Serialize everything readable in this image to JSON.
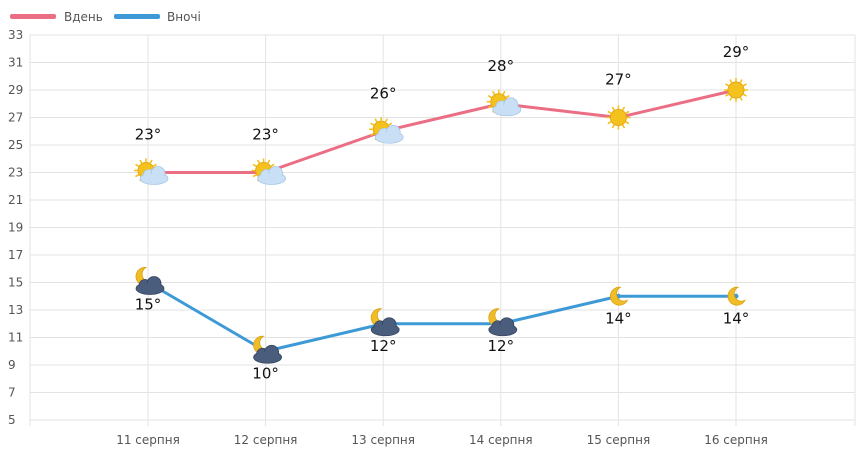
{
  "legend": {
    "day_label": "Вдень",
    "night_label": "Вночі"
  },
  "colors": {
    "day": "#ec6e85",
    "night": "#3d9ad6",
    "grid": "#e3e3e3",
    "axis_text": "#555555",
    "sun": "#f3c21d",
    "moon": "#f0bd26",
    "cloud_light": "#c9dff5",
    "cloud_dark": "#4a5d7c"
  },
  "chart_data": {
    "type": "line",
    "title": "",
    "xlabel": "",
    "ylabel": "",
    "ylim": [
      5,
      33
    ],
    "y_ticks": [
      5,
      7,
      9,
      11,
      13,
      15,
      17,
      19,
      21,
      23,
      25,
      27,
      29,
      31,
      33
    ],
    "grid": true,
    "legend_position": "top-left",
    "categories": [
      "11 серпня",
      "12 серпня",
      "13 серпня",
      "14 серпня",
      "15 серпня",
      "16 серпня"
    ],
    "series": [
      {
        "name": "Вдень",
        "values": [
          23,
          23,
          26,
          28,
          27,
          29
        ],
        "labels": [
          "23°",
          "23°",
          "26°",
          "28°",
          "27°",
          "29°"
        ],
        "icons": [
          "sun-cloud-icon",
          "sun-cloud-icon",
          "sun-cloud-icon",
          "sun-cloud-icon",
          "sun-icon",
          "sun-icon"
        ]
      },
      {
        "name": "Вночі",
        "values": [
          15,
          10,
          12,
          12,
          14,
          14
        ],
        "labels": [
          "15°",
          "10°",
          "12°",
          "12°",
          "14°",
          "14°"
        ],
        "icons": [
          "moon-cloud-icon",
          "moon-cloud-icon",
          "moon-cloud-icon",
          "moon-cloud-icon",
          "moon-icon",
          "moon-icon"
        ]
      }
    ]
  }
}
